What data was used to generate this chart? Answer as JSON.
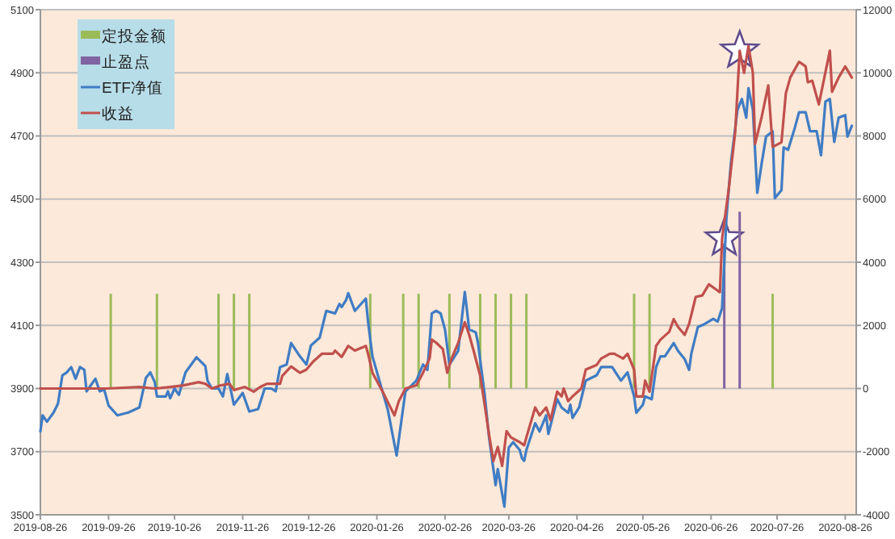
{
  "chart_data": {
    "type": "line",
    "xlim": [
      "2019-08-26",
      "2020-08-31"
    ],
    "xticks": [
      "2019-08-26",
      "2019-09-26",
      "2019-10-26",
      "2019-11-26",
      "2019-12-26",
      "2020-01-26",
      "2020-02-26",
      "2020-03-26",
      "2020-04-26",
      "2020-05-26",
      "2020-06-26",
      "2020-07-26",
      "2020-08-26"
    ],
    "ylim": [
      3500,
      5100
    ],
    "yticks": [
      3500,
      3700,
      3900,
      4100,
      4300,
      4500,
      4700,
      4900,
      5100
    ],
    "y2lim": [
      -4000,
      12000
    ],
    "y2ticks": [
      -4000,
      -2000,
      0,
      2000,
      4000,
      6000,
      8000,
      10000,
      12000
    ],
    "grid": "y",
    "legend": "top left",
    "series": [
      {
        "name": "定投金额",
        "type": "bar",
        "axis": "y2",
        "color": "#9bbb59",
        "x": [
          "2019-09-27",
          "2019-10-18",
          "2019-11-15",
          "2019-11-22",
          "2019-11-29",
          "2020-01-23",
          "2020-02-07",
          "2020-02-14",
          "2020-02-28",
          "2020-03-13",
          "2020-03-20",
          "2020-03-27",
          "2020-04-03",
          "2020-05-22",
          "2020-05-29",
          "2020-07-24"
        ],
        "values": [
          3000,
          3000,
          3000,
          3000,
          3000,
          3000,
          3000,
          3000,
          3000,
          3000,
          3000,
          3000,
          3000,
          3000,
          3000,
          3000
        ]
      },
      {
        "name": "止盈点",
        "type": "bar",
        "axis": "y2",
        "color": "#8064a2",
        "x": [
          "2020-07-02",
          "2020-07-09"
        ],
        "values": [
          4600,
          5600
        ]
      },
      {
        "name": "ETF净值",
        "axis": "y",
        "color": "#3f7cc4",
        "x": [
          "2019-08-26",
          "2019-08-27",
          "2019-08-29",
          "2019-09-01",
          "2019-09-03",
          "2019-09-05",
          "2019-09-07",
          "2019-09-09",
          "2019-09-11",
          "2019-09-13",
          "2019-09-15",
          "2019-09-16",
          "2019-09-20",
          "2019-09-22",
          "2019-09-24",
          "2019-09-26",
          "2019-09-30",
          "2019-10-05",
          "2019-10-10",
          "2019-10-13",
          "2019-10-15",
          "2019-10-17",
          "2019-10-18",
          "2019-10-22",
          "2019-10-23",
          "2019-10-24",
          "2019-10-26",
          "2019-10-28",
          "2019-10-31",
          "2019-11-05",
          "2019-11-09",
          "2019-11-10",
          "2019-11-12",
          "2019-11-15",
          "2019-11-17",
          "2019-11-19",
          "2019-11-22",
          "2019-11-26",
          "2019-11-29",
          "2019-12-03",
          "2019-12-06",
          "2019-12-09",
          "2019-12-11",
          "2019-12-13",
          "2019-12-16",
          "2019-12-18",
          "2019-12-22",
          "2019-12-25",
          "2019-12-27",
          "2019-12-31",
          "2020-01-03",
          "2020-01-07",
          "2020-01-09",
          "2020-01-10",
          "2020-01-12",
          "2020-01-13",
          "2020-01-16",
          "2020-01-21",
          "2020-01-22",
          "2020-01-24",
          "2020-01-31",
          "2020-02-04",
          "2020-02-08",
          "2020-02-13",
          "2020-02-16",
          "2020-02-18",
          "2020-02-20",
          "2020-02-22",
          "2020-02-24",
          "2020-02-26",
          "2020-02-28",
          "2020-03-03",
          "2020-03-06",
          "2020-03-08",
          "2020-03-11",
          "2020-03-12",
          "2020-03-15",
          "2020-03-17",
          "2020-03-20",
          "2020-03-21",
          "2020-03-24",
          "2020-03-26",
          "2020-03-28",
          "2020-03-31",
          "2020-04-01",
          "2020-04-02",
          "2020-04-03",
          "2020-04-07",
          "2020-04-09",
          "2020-04-12",
          "2020-04-13",
          "2020-04-17",
          "2020-04-19",
          "2020-04-22",
          "2020-04-23",
          "2020-04-24",
          "2020-04-27",
          "2020-04-30",
          "2020-05-05",
          "2020-05-07",
          "2020-05-10",
          "2020-05-12",
          "2020-05-16",
          "2020-05-19",
          "2020-05-22",
          "2020-05-23",
          "2020-05-26",
          "2020-05-27",
          "2020-05-30",
          "2020-06-01",
          "2020-06-03",
          "2020-06-05",
          "2020-06-09",
          "2020-06-11",
          "2020-06-14",
          "2020-06-16",
          "2020-06-17",
          "2020-06-20",
          "2020-06-23",
          "2020-06-27",
          "2020-06-29",
          "2020-07-01",
          "2020-07-03",
          "2020-07-05",
          "2020-07-08",
          "2020-07-10",
          "2020-07-12",
          "2020-07-13",
          "2020-07-15",
          "2020-07-17",
          "2020-07-19",
          "2020-07-21",
          "2020-07-24",
          "2020-07-25",
          "2020-07-28",
          "2020-07-29",
          "2020-07-31",
          "2020-08-03",
          "2020-08-05",
          "2020-08-08",
          "2020-08-10",
          "2020-08-13",
          "2020-08-15",
          "2020-08-17",
          "2020-08-19",
          "2020-08-21",
          "2020-08-23",
          "2020-08-26",
          "2020-08-27",
          "2020-08-29"
        ],
        "values": [
          3764,
          3815,
          3795,
          3824,
          3852,
          3942,
          3951,
          3968,
          3931,
          3968,
          3959,
          3891,
          3931,
          3891,
          3897,
          3846,
          3815,
          3824,
          3840,
          3934,
          3951,
          3920,
          3875,
          3875,
          3891,
          3869,
          3900,
          3880,
          3951,
          3999,
          3971,
          3925,
          3900,
          3900,
          3875,
          3946,
          3849,
          3886,
          3827,
          3835,
          3900,
          3900,
          3891,
          3968,
          3976,
          4044,
          4002,
          3976,
          4036,
          4061,
          4146,
          4138,
          4168,
          4158,
          4180,
          4202,
          4146,
          4185,
          4112,
          4002,
          3832,
          3688,
          3891,
          3925,
          3976,
          3959,
          4138,
          4146,
          4138,
          4087,
          3976,
          4019,
          4206,
          4087,
          4078,
          4044,
          3883,
          3747,
          3594,
          3645,
          3526,
          3713,
          3730,
          3705,
          3679,
          3671,
          3705,
          3790,
          3764,
          3815,
          3756,
          3866,
          3840,
          3823,
          3849,
          3807,
          3840,
          3925,
          3942,
          3968,
          3968,
          3968,
          3925,
          3951,
          3875,
          3823,
          3849,
          3875,
          3866,
          3968,
          4002,
          4002,
          4044,
          4019,
          3993,
          3959,
          4010,
          4095,
          4104,
          4121,
          4112,
          4155,
          4443,
          4613,
          4783,
          4817,
          4758,
          4851,
          4783,
          4520,
          4613,
          4698,
          4715,
          4503,
          4528,
          4664,
          4656,
          4724,
          4775,
          4775,
          4715,
          4715,
          4639,
          4809,
          4817,
          4681,
          4758,
          4766,
          4698,
          4732
        ]
      },
      {
        "name": "收益",
        "axis": "y2",
        "color": "#c0504d",
        "x": [
          "2019-08-26",
          "2019-09-25",
          "2019-10-10",
          "2019-10-17",
          "2019-10-24",
          "2019-10-30",
          "2019-11-06",
          "2019-11-09",
          "2019-11-12",
          "2019-11-16",
          "2019-11-20",
          "2019-11-22",
          "2019-11-27",
          "2019-12-01",
          "2019-12-04",
          "2019-12-07",
          "2019-12-13",
          "2019-12-14",
          "2019-12-18",
          "2019-12-22",
          "2019-12-25",
          "2019-12-28",
          "2020-01-01",
          "2020-01-06",
          "2020-01-07",
          "2020-01-10",
          "2020-01-13",
          "2020-01-16",
          "2020-01-21",
          "2020-01-22",
          "2020-01-24",
          "2020-01-29",
          "2020-02-03",
          "2020-02-05",
          "2020-02-08",
          "2020-02-13",
          "2020-02-16",
          "2020-02-19",
          "2020-02-20",
          "2020-02-22",
          "2020-02-25",
          "2020-02-27",
          "2020-02-29",
          "2020-03-03",
          "2020-03-06",
          "2020-03-08",
          "2020-03-10",
          "2020-03-13",
          "2020-03-15",
          "2020-03-17",
          "2020-03-19",
          "2020-03-21",
          "2020-03-23",
          "2020-03-25",
          "2020-03-27",
          "2020-03-31",
          "2020-04-02",
          "2020-04-03",
          "2020-04-07",
          "2020-04-09",
          "2020-04-12",
          "2020-04-14",
          "2020-04-17",
          "2020-04-19",
          "2020-04-20",
          "2020-04-22",
          "2020-04-24",
          "2020-04-28",
          "2020-04-30",
          "2020-05-05",
          "2020-05-07",
          "2020-05-11",
          "2020-05-13",
          "2020-05-17",
          "2020-05-19",
          "2020-05-22",
          "2020-05-23",
          "2020-05-26",
          "2020-05-27",
          "2020-05-29",
          "2020-06-01",
          "2020-06-03",
          "2020-06-07",
          "2020-06-09",
          "2020-06-11",
          "2020-06-14",
          "2020-06-16",
          "2020-06-19",
          "2020-06-22",
          "2020-06-25",
          "2020-06-28",
          "2020-06-30",
          "2020-07-01",
          "2020-07-04",
          "2020-07-07",
          "2020-07-09",
          "2020-07-11",
          "2020-07-13",
          "2020-07-15",
          "2020-07-16",
          "2020-07-19",
          "2020-07-22",
          "2020-07-24",
          "2020-07-28",
          "2020-07-30",
          "2020-08-01",
          "2020-08-05",
          "2020-08-08",
          "2020-08-09",
          "2020-08-11",
          "2020-08-14",
          "2020-08-19",
          "2020-08-20",
          "2020-08-23",
          "2020-08-26",
          "2020-08-29"
        ],
        "values": [
          0,
          0,
          50,
          0,
          50,
          100,
          200,
          150,
          0,
          100,
          150,
          -50,
          50,
          -100,
          50,
          150,
          150,
          400,
          700,
          500,
          600,
          850,
          1100,
          1100,
          1200,
          1000,
          1350,
          1200,
          1350,
          1100,
          500,
          -150,
          -850,
          -400,
          0,
          100,
          500,
          950,
          1550,
          1450,
          1250,
          500,
          950,
          1450,
          2100,
          1700,
          1200,
          400,
          -500,
          -1450,
          -2300,
          -1850,
          -2450,
          -1350,
          -1550,
          -1700,
          -1800,
          -1550,
          -600,
          -850,
          -600,
          -1000,
          -100,
          -250,
          0,
          -400,
          -250,
          0,
          600,
          750,
          950,
          1100,
          1100,
          950,
          1100,
          600,
          -250,
          -250,
          250,
          -100,
          1350,
          1550,
          1800,
          2200,
          1950,
          1700,
          2050,
          2900,
          2950,
          3300,
          3150,
          3050,
          4750,
          6300,
          8150,
          10700,
          10000,
          10850,
          10000,
          7750,
          8600,
          9600,
          7650,
          7800,
          9350,
          9850,
          10350,
          10200,
          9700,
          9750,
          9000,
          10700,
          9400,
          9850,
          10200,
          9850
        ]
      }
    ]
  }
}
